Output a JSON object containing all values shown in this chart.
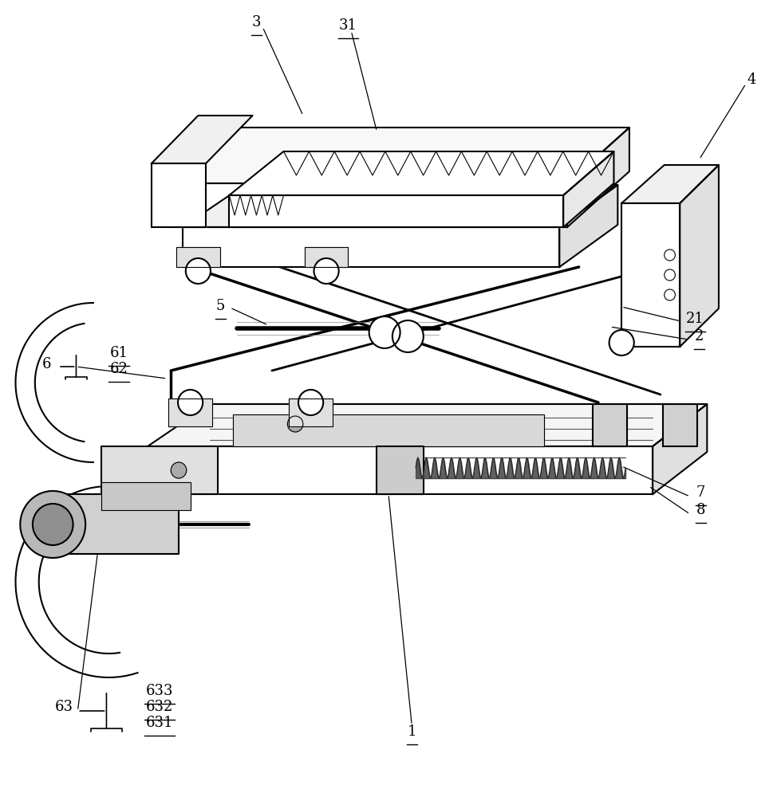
{
  "bg_color": "#ffffff",
  "line_color": "#000000",
  "fig_width": 9.74,
  "fig_height": 10.0,
  "dpi": 100,
  "label_fontsize": 13,
  "underlined_labels": [
    "3",
    "31",
    "5",
    "1",
    "2",
    "21",
    "61",
    "62",
    "7",
    "8",
    "633",
    "632",
    "631"
  ]
}
